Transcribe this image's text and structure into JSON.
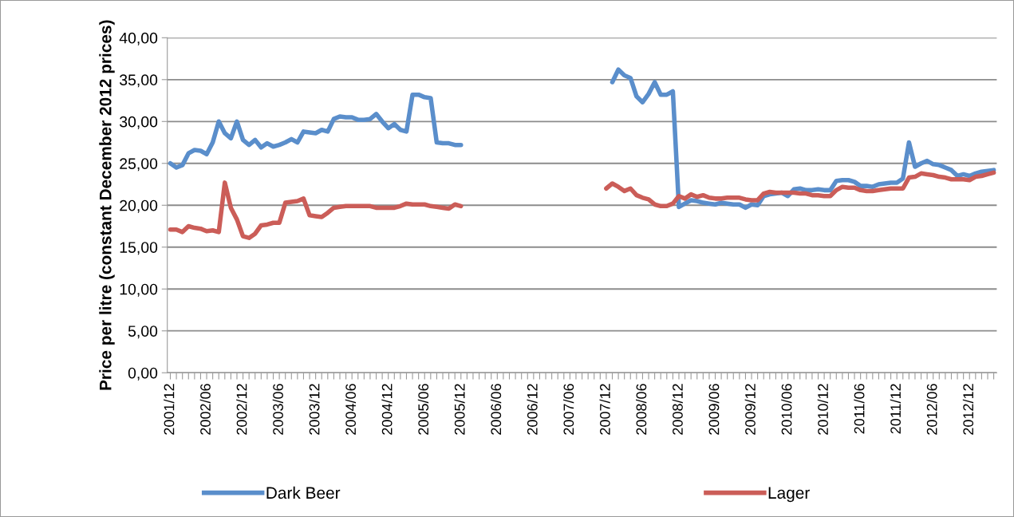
{
  "chart_data": {
    "type": "line",
    "ylabel": "Price per litre (constant December 2012 prices)",
    "categories": [
      "2001/12",
      null,
      null,
      null,
      null,
      null,
      "2002/06",
      null,
      null,
      null,
      null,
      null,
      "2002/12",
      null,
      null,
      null,
      null,
      null,
      "2003/06",
      null,
      null,
      null,
      null,
      null,
      "2003/12",
      null,
      null,
      null,
      null,
      null,
      "2004/06",
      null,
      null,
      null,
      null,
      null,
      "2004/12",
      null,
      null,
      null,
      null,
      null,
      "2005/06",
      null,
      null,
      null,
      null,
      null,
      "2005/12",
      null,
      null,
      null,
      null,
      null,
      "2006/06",
      null,
      null,
      null,
      null,
      null,
      "2006/12",
      null,
      null,
      null,
      null,
      null,
      "2007/06",
      null,
      null,
      null,
      null,
      null,
      "2007/12",
      null,
      null,
      null,
      null,
      null,
      "2008/06",
      null,
      null,
      null,
      null,
      null,
      "2008/12",
      null,
      null,
      null,
      null,
      null,
      "2009/06",
      null,
      null,
      null,
      null,
      null,
      "2009/12",
      null,
      null,
      null,
      null,
      null,
      "2010/06",
      null,
      null,
      null,
      null,
      null,
      "2010/12",
      null,
      null,
      null,
      null,
      null,
      "2011/06",
      null,
      null,
      null,
      null,
      null,
      "2011/12",
      null,
      null,
      null,
      null,
      null,
      "2012/06",
      null,
      null,
      null,
      null,
      null,
      "2012/12",
      null,
      null,
      null,
      null
    ],
    "series": [
      {
        "name": "Dark Beer",
        "color": "#5a8ecb",
        "values": [
          25.0,
          24.5,
          24.8,
          26.2,
          26.6,
          26.5,
          26.1,
          27.5,
          30.0,
          28.6,
          28.0,
          30.0,
          27.8,
          27.2,
          27.8,
          26.9,
          27.4,
          27.0,
          27.2,
          27.5,
          27.9,
          27.5,
          28.8,
          28.7,
          28.6,
          29.0,
          28.8,
          30.3,
          30.6,
          30.5,
          30.5,
          30.2,
          30.2,
          30.3,
          30.9,
          30.0,
          29.2,
          29.7,
          29.0,
          28.8,
          33.2,
          33.2,
          32.9,
          32.8,
          27.5,
          27.4,
          27.4,
          27.2,
          27.2,
          null,
          null,
          null,
          null,
          null,
          null,
          null,
          null,
          null,
          null,
          null,
          null,
          null,
          null,
          null,
          null,
          null,
          null,
          null,
          null,
          null,
          null,
          null,
          null,
          34.7,
          36.2,
          35.5,
          35.2,
          33.0,
          32.3,
          33.3,
          34.7,
          33.2,
          33.2,
          33.6,
          19.8,
          20.2,
          20.6,
          20.5,
          20.3,
          20.2,
          20.1,
          20.3,
          20.2,
          20.1,
          20.1,
          19.7,
          20.1,
          20.0,
          21.1,
          21.3,
          21.4,
          21.5,
          21.1,
          21.9,
          22.0,
          21.8,
          21.8,
          21.9,
          21.8,
          21.8,
          22.9,
          23.0,
          23.0,
          22.8,
          22.3,
          22.3,
          22.2,
          22.5,
          22.6,
          22.7,
          22.7,
          23.2,
          27.5,
          24.6,
          25.0,
          25.3,
          24.9,
          24.8,
          24.5,
          24.2,
          23.5,
          23.7,
          23.5,
          23.8,
          24.0,
          24.1,
          24.2
        ]
      },
      {
        "name": "Lager",
        "color": "#cb5d58",
        "values": [
          17.1,
          17.1,
          16.8,
          17.5,
          17.3,
          17.2,
          16.9,
          17.0,
          16.8,
          22.7,
          19.7,
          18.3,
          16.3,
          16.1,
          16.6,
          17.6,
          17.7,
          17.9,
          17.9,
          20.3,
          20.4,
          20.5,
          20.8,
          18.8,
          18.7,
          18.6,
          19.1,
          19.7,
          19.8,
          19.9,
          19.9,
          19.9,
          19.9,
          19.9,
          19.7,
          19.7,
          19.7,
          19.7,
          19.9,
          20.2,
          20.1,
          20.1,
          20.1,
          19.9,
          19.8,
          19.7,
          19.6,
          20.1,
          19.9,
          null,
          null,
          null,
          null,
          null,
          null,
          null,
          null,
          null,
          null,
          null,
          null,
          null,
          null,
          null,
          null,
          null,
          null,
          null,
          null,
          null,
          null,
          null,
          22.0,
          22.6,
          22.2,
          21.7,
          22.0,
          21.2,
          20.9,
          20.7,
          20.1,
          19.9,
          19.9,
          20.2,
          21.1,
          20.8,
          21.3,
          21.0,
          21.2,
          20.9,
          20.8,
          20.8,
          20.9,
          20.9,
          20.9,
          20.7,
          20.6,
          20.6,
          21.4,
          21.6,
          21.5,
          21.5,
          21.5,
          21.5,
          21.4,
          21.4,
          21.2,
          21.2,
          21.1,
          21.1,
          21.8,
          22.2,
          22.1,
          22.1,
          21.8,
          21.7,
          21.7,
          21.8,
          21.9,
          22.0,
          22.0,
          22.0,
          23.3,
          23.4,
          23.8,
          23.7,
          23.6,
          23.4,
          23.3,
          23.1,
          23.1,
          23.1,
          23.0,
          23.4,
          23.5,
          23.7,
          23.9
        ]
      }
    ],
    "ylim": [
      0,
      40
    ],
    "yticks": [
      {
        "value": 0,
        "label": "0,00"
      },
      {
        "value": 5,
        "label": "5,00"
      },
      {
        "value": 10,
        "label": "10,00"
      },
      {
        "value": 15,
        "label": "15,00"
      },
      {
        "value": 20,
        "label": "20,00"
      },
      {
        "value": 25,
        "label": "25,00"
      },
      {
        "value": 30,
        "label": "30,00"
      },
      {
        "value": 35,
        "label": "35,00"
      },
      {
        "value": 40,
        "label": "40,00"
      }
    ],
    "grid": "y",
    "legend": "bottom",
    "marker": "none",
    "line_style": "solid"
  }
}
